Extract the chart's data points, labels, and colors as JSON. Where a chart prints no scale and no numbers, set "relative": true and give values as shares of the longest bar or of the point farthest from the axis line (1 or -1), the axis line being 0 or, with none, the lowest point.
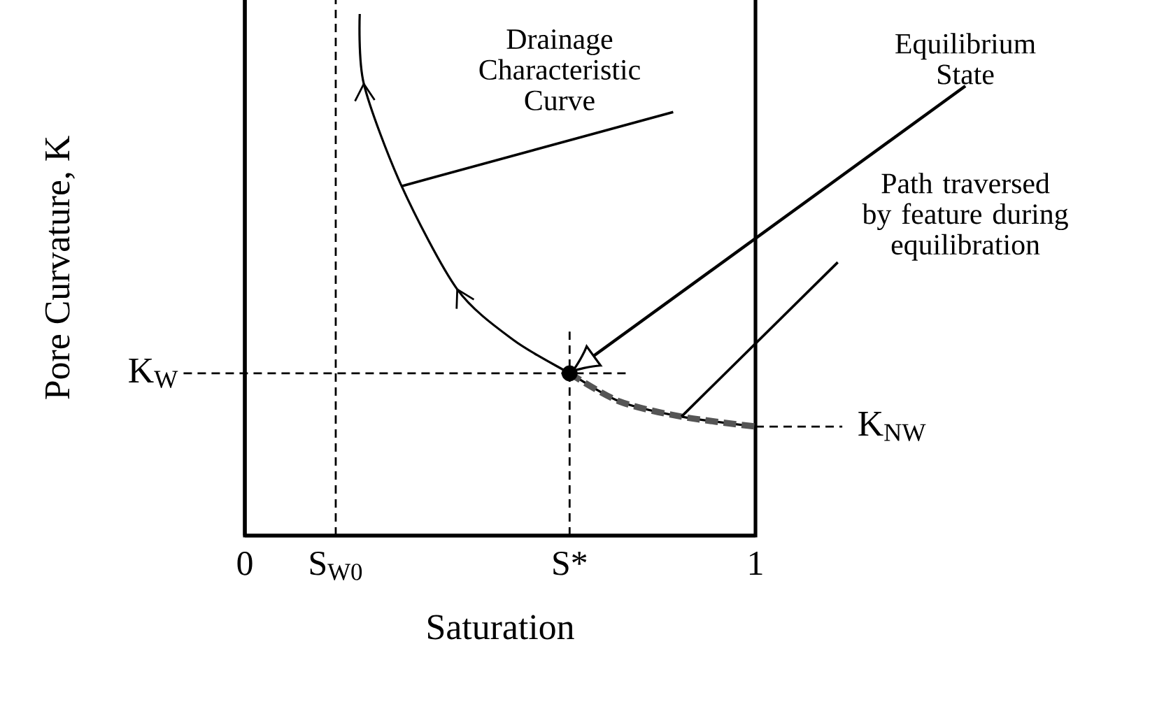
{
  "chart_data": {
    "type": "line",
    "xlabel": "Saturation",
    "ylabel": "Pore Curvature, K",
    "relative": true,
    "xlim": [
      0,
      1
    ],
    "xticks": [
      0,
      {
        "value": 0.178,
        "label": "S$_{W0}$"
      },
      {
        "value": 0.636,
        "label": "S*"
      },
      1
    ],
    "series": [
      {
        "color": "#000000",
        "line_style": "solid",
        "x": [
          0.225,
          0.233,
          0.307,
          0.416,
          0.526,
          0.636,
          0.734,
          0.855,
          1.0
        ],
        "values": [
          1.0,
          0.866,
          0.67,
          0.472,
          0.375,
          0.311,
          0.257,
          0.228,
          0.209
        ]
      },
      {
        "color": "#555555",
        "line_style": "dashed",
        "x": [
          0.636,
          0.734,
          0.855,
          1.0
        ],
        "values": [
          0.311,
          0.257,
          0.228,
          0.209
        ]
      },
      {
        "type": "scatter",
        "color": "#000000",
        "marker": "circle",
        "x": [
          0.636
        ],
        "values": [
          0.311
        ]
      }
    ],
    "ref_lines": [
      {
        "axis": "x",
        "value": 0.178
      },
      {
        "axis": "x",
        "value": 0.636
      },
      {
        "axis": "y",
        "value": 0.311,
        "label": "K$_{W}$"
      },
      {
        "axis": "y",
        "value": 0.209,
        "label": "K$_{NW}$"
      }
    ],
    "annotations": [
      {
        "text": "Drainage Characteristic Curve",
        "x": 0.307,
        "y": 0.67
      },
      {
        "text": "Equilibrium State",
        "x": 0.636,
        "y": 0.311
      },
      {
        "text": "Path traversed by feature during equilibration",
        "x": 0.855,
        "y": 0.228
      }
    ]
  }
}
